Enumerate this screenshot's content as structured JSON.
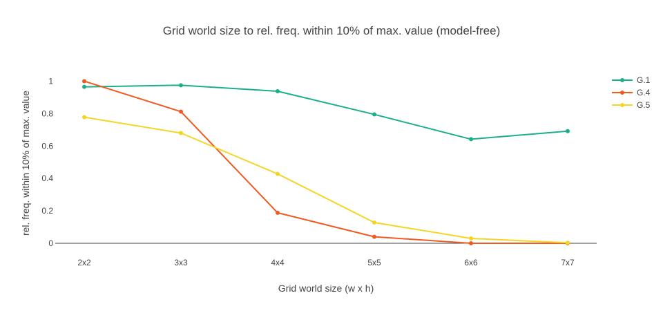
{
  "chart_data": {
    "type": "line",
    "title": "Grid world size to rel. freq. within 10% of max. value (model-free)",
    "xlabel": "Grid world size (w x h)",
    "ylabel": "rel. freq. within 10% of max. value",
    "categories": [
      "2x2",
      "3x3",
      "4x4",
      "5x5",
      "6x6",
      "7x7"
    ],
    "ylim": [
      0,
      1.1
    ],
    "yticks": [
      0,
      0.2,
      0.4,
      0.6,
      0.8,
      1
    ],
    "ytick_labels": [
      "0",
      "0.2",
      "0.4",
      "0.6",
      "0.8",
      "1"
    ],
    "grid": false,
    "legend": "top-right",
    "series": [
      {
        "name": "G.1",
        "color": "#1aaf8b",
        "values": [
          0.965,
          0.975,
          0.938,
          0.795,
          0.642,
          0.692
        ]
      },
      {
        "name": "G.4",
        "color": "#ef5a21",
        "values": [
          1.0,
          0.812,
          0.188,
          0.04,
          0.0,
          0.0
        ]
      },
      {
        "name": "G.5",
        "color": "#f5d523",
        "values": [
          0.778,
          0.68,
          0.428,
          0.128,
          0.03,
          0.003
        ]
      }
    ]
  }
}
